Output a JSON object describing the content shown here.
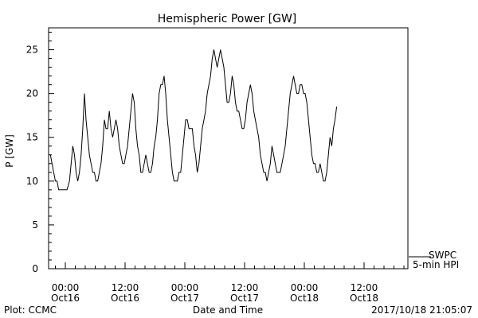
{
  "chart_data": {
    "type": "line",
    "title": "Hemispheric Power [GW]",
    "xlabel": "Date and Time",
    "ylabel": "P [GW]",
    "ylim": [
      0,
      27.5
    ],
    "y_ticks": [
      0,
      5,
      10,
      15,
      20,
      25
    ],
    "x_ticks": [
      {
        "time": "00:00",
        "date": "Oct16"
      },
      {
        "time": "12:00",
        "date": "Oct16"
      },
      {
        "time": "00:00",
        "date": "Oct17"
      },
      {
        "time": "12:00",
        "date": "Oct17"
      },
      {
        "time": "00:00",
        "date": "Oct18"
      },
      {
        "time": "12:00",
        "date": "Oct18"
      }
    ],
    "legend": {
      "line1": "SWPC",
      "line2": "5-min HPI",
      "placement": "bottom-right outside"
    },
    "series": [
      {
        "points": [
          [
            "2017-10-15 21:00",
            13
          ],
          [
            "2017-10-15 21:20",
            12
          ],
          [
            "2017-10-15 21:40",
            11
          ],
          [
            "2017-10-15 22:00",
            10
          ],
          [
            "2017-10-15 22:20",
            10
          ],
          [
            "2017-10-15 22:40",
            9
          ],
          [
            "2017-10-15 23:30",
            9
          ],
          [
            "2017-10-16 00:20",
            9
          ],
          [
            "2017-10-16 00:50",
            10
          ],
          [
            "2017-10-16 01:10",
            12
          ],
          [
            "2017-10-16 01:30",
            14
          ],
          [
            "2017-10-16 01:50",
            13
          ],
          [
            "2017-10-16 02:10",
            11
          ],
          [
            "2017-10-16 02:30",
            10
          ],
          [
            "2017-10-16 02:50",
            11
          ],
          [
            "2017-10-16 03:10",
            13
          ],
          [
            "2017-10-16 03:30",
            16
          ],
          [
            "2017-10-16 03:50",
            20
          ],
          [
            "2017-10-16 04:10",
            17
          ],
          [
            "2017-10-16 04:30",
            15
          ],
          [
            "2017-10-16 04:50",
            13
          ],
          [
            "2017-10-16 05:10",
            12
          ],
          [
            "2017-10-16 05:30",
            11
          ],
          [
            "2017-10-16 05:50",
            11
          ],
          [
            "2017-10-16 06:10",
            10
          ],
          [
            "2017-10-16 06:30",
            10
          ],
          [
            "2017-10-16 06:50",
            11
          ],
          [
            "2017-10-16 07:10",
            12
          ],
          [
            "2017-10-16 07:30",
            14
          ],
          [
            "2017-10-16 07:50",
            17
          ],
          [
            "2017-10-16 08:10",
            16
          ],
          [
            "2017-10-16 08:30",
            16
          ],
          [
            "2017-10-16 08:50",
            18
          ],
          [
            "2017-10-16 09:10",
            16
          ],
          [
            "2017-10-16 09:30",
            15
          ],
          [
            "2017-10-16 09:50",
            16
          ],
          [
            "2017-10-16 10:10",
            17
          ],
          [
            "2017-10-16 10:30",
            16
          ],
          [
            "2017-10-16 10:50",
            14
          ],
          [
            "2017-10-16 11:10",
            13
          ],
          [
            "2017-10-16 11:30",
            12
          ],
          [
            "2017-10-16 11:50",
            12
          ],
          [
            "2017-10-16 12:10",
            13
          ],
          [
            "2017-10-16 12:30",
            14
          ],
          [
            "2017-10-16 12:50",
            16
          ],
          [
            "2017-10-16 13:10",
            18
          ],
          [
            "2017-10-16 13:30",
            20
          ],
          [
            "2017-10-16 13:50",
            19
          ],
          [
            "2017-10-16 14:10",
            16
          ],
          [
            "2017-10-16 14:30",
            14
          ],
          [
            "2017-10-16 14:50",
            13
          ],
          [
            "2017-10-16 15:10",
            11
          ],
          [
            "2017-10-16 15:30",
            11
          ],
          [
            "2017-10-16 15:50",
            12
          ],
          [
            "2017-10-16 16:10",
            13
          ],
          [
            "2017-10-16 16:30",
            12
          ],
          [
            "2017-10-16 16:50",
            11
          ],
          [
            "2017-10-16 17:10",
            11
          ],
          [
            "2017-10-16 17:30",
            12
          ],
          [
            "2017-10-16 17:50",
            14
          ],
          [
            "2017-10-16 18:10",
            15
          ],
          [
            "2017-10-16 18:30",
            17
          ],
          [
            "2017-10-16 18:50",
            20
          ],
          [
            "2017-10-16 19:10",
            21
          ],
          [
            "2017-10-16 19:30",
            21
          ],
          [
            "2017-10-16 19:50",
            22
          ],
          [
            "2017-10-16 20:10",
            20
          ],
          [
            "2017-10-16 20:30",
            17
          ],
          [
            "2017-10-16 20:50",
            15
          ],
          [
            "2017-10-16 21:10",
            13
          ],
          [
            "2017-10-16 21:30",
            11
          ],
          [
            "2017-10-16 21:50",
            10
          ],
          [
            "2017-10-16 22:10",
            10
          ],
          [
            "2017-10-16 22:30",
            10
          ],
          [
            "2017-10-16 22:50",
            11
          ],
          [
            "2017-10-16 23:10",
            11
          ],
          [
            "2017-10-16 23:30",
            13
          ],
          [
            "2017-10-16 23:50",
            15
          ],
          [
            "2017-10-17 00:10",
            17
          ],
          [
            "2017-10-17 00:30",
            17
          ],
          [
            "2017-10-17 00:50",
            16
          ],
          [
            "2017-10-17 01:10",
            16
          ],
          [
            "2017-10-17 01:30",
            16
          ],
          [
            "2017-10-17 01:50",
            14
          ],
          [
            "2017-10-17 02:10",
            13
          ],
          [
            "2017-10-17 02:30",
            11
          ],
          [
            "2017-10-17 02:50",
            12
          ],
          [
            "2017-10-17 03:10",
            14
          ],
          [
            "2017-10-17 03:30",
            16
          ],
          [
            "2017-10-17 03:50",
            17
          ],
          [
            "2017-10-17 04:10",
            18
          ],
          [
            "2017-10-17 04:30",
            20
          ],
          [
            "2017-10-17 04:50",
            21
          ],
          [
            "2017-10-17 05:10",
            22
          ],
          [
            "2017-10-17 05:30",
            24
          ],
          [
            "2017-10-17 05:50",
            25
          ],
          [
            "2017-10-17 06:10",
            24
          ],
          [
            "2017-10-17 06:30",
            23
          ],
          [
            "2017-10-17 06:50",
            24
          ],
          [
            "2017-10-17 07:10",
            25
          ],
          [
            "2017-10-17 07:30",
            24
          ],
          [
            "2017-10-17 07:50",
            23
          ],
          [
            "2017-10-17 08:10",
            21
          ],
          [
            "2017-10-17 08:30",
            19
          ],
          [
            "2017-10-17 08:50",
            19
          ],
          [
            "2017-10-17 09:10",
            20
          ],
          [
            "2017-10-17 09:30",
            22
          ],
          [
            "2017-10-17 09:50",
            21
          ],
          [
            "2017-10-17 10:10",
            19
          ],
          [
            "2017-10-17 10:30",
            18
          ],
          [
            "2017-10-17 10:50",
            18
          ],
          [
            "2017-10-17 11:10",
            17
          ],
          [
            "2017-10-17 11:30",
            16
          ],
          [
            "2017-10-17 11:50",
            16
          ],
          [
            "2017-10-17 12:10",
            17
          ],
          [
            "2017-10-17 12:30",
            19
          ],
          [
            "2017-10-17 12:50",
            20
          ],
          [
            "2017-10-17 13:10",
            21
          ],
          [
            "2017-10-17 13:30",
            20
          ],
          [
            "2017-10-17 13:50",
            18
          ],
          [
            "2017-10-17 14:10",
            17
          ],
          [
            "2017-10-17 14:30",
            16
          ],
          [
            "2017-10-17 14:50",
            15
          ],
          [
            "2017-10-17 15:10",
            13
          ],
          [
            "2017-10-17 15:30",
            12
          ],
          [
            "2017-10-17 15:50",
            11
          ],
          [
            "2017-10-17 16:10",
            11
          ],
          [
            "2017-10-17 16:30",
            10
          ],
          [
            "2017-10-17 16:50",
            11
          ],
          [
            "2017-10-17 17:10",
            12
          ],
          [
            "2017-10-17 17:30",
            14
          ],
          [
            "2017-10-17 17:50",
            13
          ],
          [
            "2017-10-17 18:10",
            12
          ],
          [
            "2017-10-17 18:30",
            11
          ],
          [
            "2017-10-17 18:50",
            11
          ],
          [
            "2017-10-17 19:10",
            11
          ],
          [
            "2017-10-17 19:30",
            12
          ],
          [
            "2017-10-17 19:50",
            13
          ],
          [
            "2017-10-17 20:10",
            14
          ],
          [
            "2017-10-17 20:30",
            16
          ],
          [
            "2017-10-17 20:50",
            18
          ],
          [
            "2017-10-17 21:10",
            20
          ],
          [
            "2017-10-17 21:30",
            21
          ],
          [
            "2017-10-17 21:50",
            22
          ],
          [
            "2017-10-17 22:10",
            21
          ],
          [
            "2017-10-17 22:30",
            20
          ],
          [
            "2017-10-17 22:50",
            20
          ],
          [
            "2017-10-17 23:10",
            21
          ],
          [
            "2017-10-17 23:30",
            21
          ],
          [
            "2017-10-17 23:50",
            20
          ],
          [
            "2017-10-18 00:10",
            20
          ],
          [
            "2017-10-18 00:30",
            19
          ],
          [
            "2017-10-18 00:50",
            17
          ],
          [
            "2017-10-18 01:10",
            15
          ],
          [
            "2017-10-18 01:30",
            13
          ],
          [
            "2017-10-18 01:50",
            12
          ],
          [
            "2017-10-18 02:10",
            12
          ],
          [
            "2017-10-18 02:30",
            11
          ],
          [
            "2017-10-18 02:50",
            11
          ],
          [
            "2017-10-18 03:10",
            12
          ],
          [
            "2017-10-18 03:30",
            11
          ],
          [
            "2017-10-18 03:50",
            10
          ],
          [
            "2017-10-18 04:10",
            10
          ],
          [
            "2017-10-18 04:30",
            11
          ],
          [
            "2017-10-18 04:50",
            13
          ],
          [
            "2017-10-18 05:10",
            15
          ],
          [
            "2017-10-18 05:30",
            14
          ],
          [
            "2017-10-18 05:50",
            16
          ],
          [
            "2017-10-18 06:10",
            17
          ],
          [
            "2017-10-18 06:30",
            18.5
          ]
        ]
      }
    ]
  },
  "footer": {
    "left": "Plot: CCMC",
    "center": "Date and Time",
    "right": "2017/10/18 21:05:07"
  }
}
